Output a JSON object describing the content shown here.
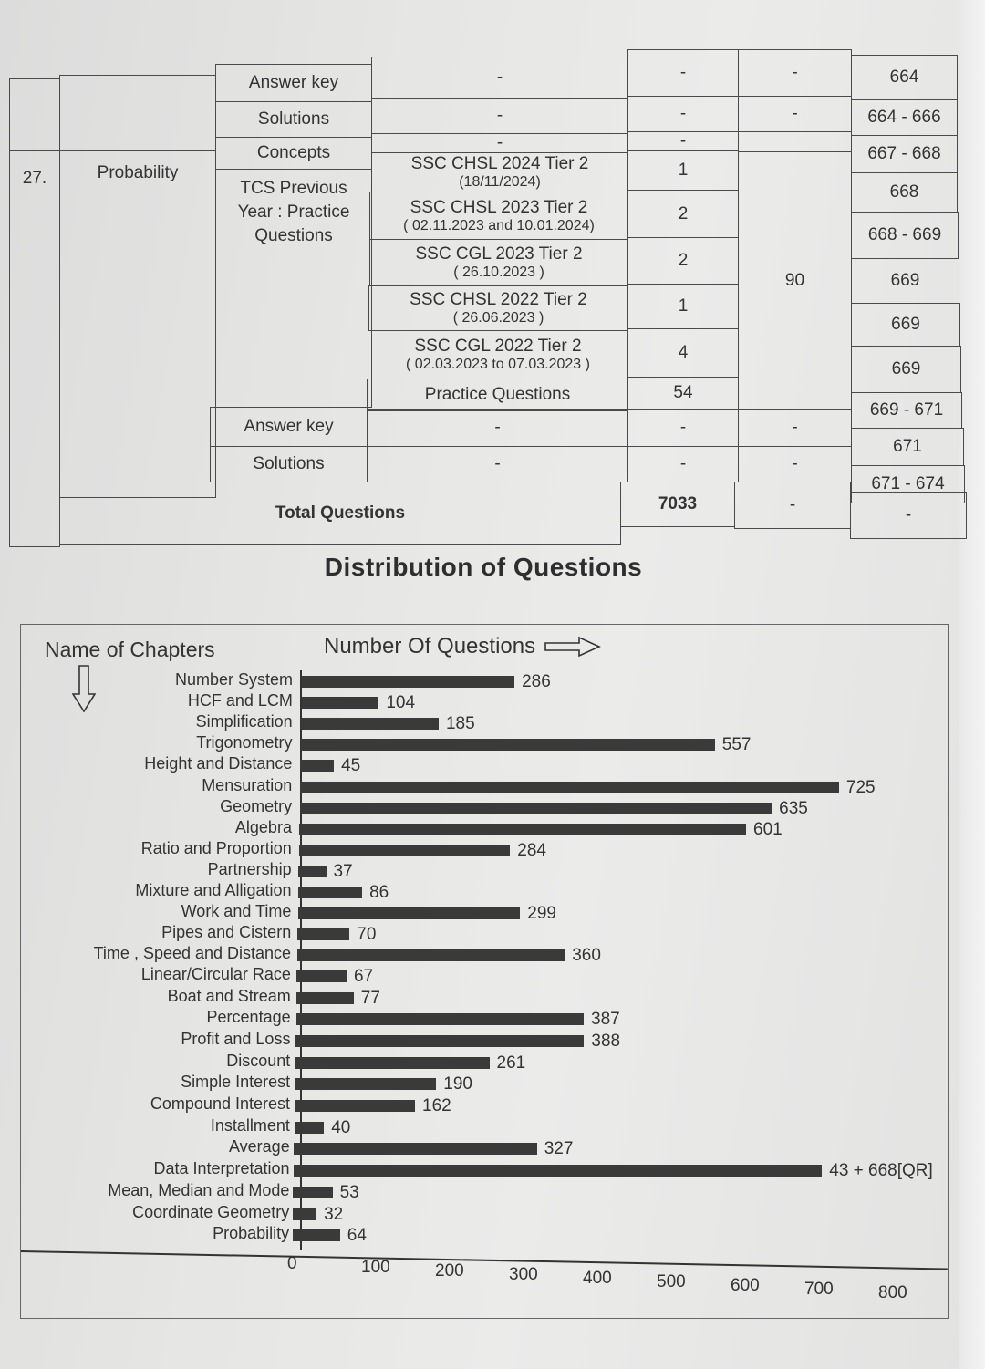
{
  "table": {
    "rows_top": [
      {
        "section": "Answer key",
        "source": "-",
        "count": "-",
        "marks": "-",
        "page": "664"
      },
      {
        "section": "Solutions",
        "source": "-",
        "count": "-",
        "marks": "-",
        "page": "664 - 666"
      }
    ],
    "chapter": {
      "number": "27.",
      "name": "Probability",
      "concepts": {
        "section": "Concepts",
        "source": "-",
        "count": "-",
        "page": "667 - 668"
      },
      "pyq_label": "TCS Previous Year : Practice Questions",
      "pyq_rows": [
        {
          "exam": "SSC CHSL 2024 Tier 2",
          "date": "(18/11/2024)",
          "count": "1",
          "page": "668"
        },
        {
          "exam": "SSC CHSL 2023 Tier 2",
          "date": "( 02.11.2023 and 10.01.2024)",
          "count": "2",
          "page": "668 - 669"
        },
        {
          "exam": "SSC CGL 2023 Tier 2",
          "date": "( 26.10.2023 )",
          "count": "2",
          "page": "669"
        },
        {
          "exam": "SSC CHSL 2022 Tier 2",
          "date": "( 26.06.2023 )",
          "count": "1",
          "page": "669"
        },
        {
          "exam": "SSC CGL 2022 Tier 2",
          "date": "( 02.03.2023 to 07.03.2023 )",
          "count": "4",
          "page": "669"
        }
      ],
      "practice": {
        "label": "Practice Questions",
        "count": "54",
        "page": "669 - 671"
      },
      "total_marks": "90",
      "answer_key": {
        "section": "Answer key",
        "source": "-",
        "count": "-",
        "marks": "-",
        "page": "671"
      },
      "solutions": {
        "section": "Solutions",
        "source": "-",
        "count": "-",
        "marks": "-",
        "page": "671 - 674"
      }
    },
    "total": {
      "label": "Total Questions",
      "count": "7033",
      "marks": "-",
      "page": "-"
    }
  },
  "title": "Distribution of Questions",
  "chart_header": {
    "left": "Name of Chapters",
    "right": "Number Of Questions"
  },
  "chart_data": {
    "type": "bar",
    "orientation": "horizontal",
    "title": "Distribution of Questions",
    "xlabel": "Number Of Questions",
    "ylabel": "Name of Chapters",
    "xlim": [
      0,
      800
    ],
    "xticks": [
      "0",
      "100",
      "200",
      "300",
      "400",
      "500",
      "600",
      "700",
      "800"
    ],
    "grid": false,
    "legend": null,
    "categories": [
      "Number System",
      "HCF and LCM",
      "Simplification",
      "Trigonometry",
      "Height and Distance",
      "Mensuration",
      "Geometry",
      "Algebra",
      "Ratio and Proportion",
      "Partnership",
      "Mixture and Alligation",
      "Work and Time",
      "Pipes and Cistern",
      "Time , Speed and Distance",
      "Linear/Circular Race",
      "Boat and Stream",
      "Percentage",
      "Profit and Loss",
      "Discount",
      "Simple Interest",
      "Compound Interest",
      "Installment",
      "Average",
      "Data Interpretation",
      "Mean, Median and Mode",
      "Coordinate Geometry",
      "Probability"
    ],
    "values": [
      286,
      104,
      185,
      557,
      45,
      725,
      635,
      601,
      284,
      37,
      86,
      299,
      70,
      360,
      67,
      77,
      387,
      388,
      261,
      190,
      162,
      40,
      327,
      711,
      53,
      32,
      64
    ],
    "value_labels": [
      "286",
      "104",
      "185",
      "557",
      "45",
      "725",
      "635",
      "601",
      "284",
      "37",
      "86",
      "299",
      "70",
      "360",
      "67",
      "77",
      "387",
      "388",
      "261",
      "190",
      "162",
      "40",
      "327",
      "43 + 668[QR]",
      "53",
      "32",
      "64"
    ],
    "annotations": [
      "Data Interpretation: 43 + 668[QR]"
    ]
  }
}
